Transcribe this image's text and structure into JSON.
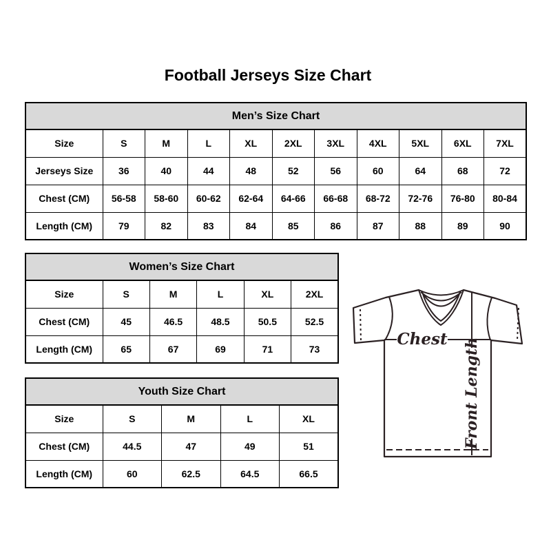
{
  "page": {
    "title": "Football Jerseys Size Chart"
  },
  "men_table": {
    "title": "Men’s Size Chart",
    "size_row_label": "Size",
    "sizes": [
      "S",
      "M",
      "L",
      "XL",
      "2XL",
      "3XL",
      "4XL",
      "5XL",
      "6XL",
      "7XL"
    ],
    "rows": [
      {
        "label": "Jerseys Size",
        "values": [
          "36",
          "40",
          "44",
          "48",
          "52",
          "56",
          "60",
          "64",
          "68",
          "72"
        ]
      },
      {
        "label": "Chest (CM)",
        "values": [
          "56-58",
          "58-60",
          "60-62",
          "62-64",
          "64-66",
          "66-68",
          "68-72",
          "72-76",
          "76-80",
          "80-84"
        ]
      },
      {
        "label": "Length (CM)",
        "values": [
          "79",
          "82",
          "83",
          "84",
          "85",
          "86",
          "87",
          "88",
          "89",
          "90"
        ]
      }
    ]
  },
  "women_table": {
    "title": "Women’s Size Chart",
    "size_row_label": "Size",
    "sizes": [
      "S",
      "M",
      "L",
      "XL",
      "2XL"
    ],
    "rows": [
      {
        "label": "Chest (CM)",
        "values": [
          "45",
          "46.5",
          "48.5",
          "50.5",
          "52.5"
        ]
      },
      {
        "label": "Length (CM)",
        "values": [
          "65",
          "67",
          "69",
          "71",
          "73"
        ]
      }
    ]
  },
  "youth_table": {
    "title": "Youth Size Chart",
    "size_row_label": "Size",
    "sizes": [
      "S",
      "M",
      "L",
      "XL"
    ],
    "rows": [
      {
        "label": "Chest (CM)",
        "values": [
          "44.5",
          "47",
          "49",
          "51"
        ]
      },
      {
        "label": "Length (CM)",
        "values": [
          "60",
          "62.5",
          "64.5",
          "66.5"
        ]
      }
    ]
  },
  "diagram": {
    "chest_label": "Chest",
    "front_length_label": "Front Length"
  },
  "colors": {
    "header_bg": "#d9d9d9",
    "table_border": "#000000",
    "text": "#000000",
    "diagram_line": "#2b2123"
  }
}
